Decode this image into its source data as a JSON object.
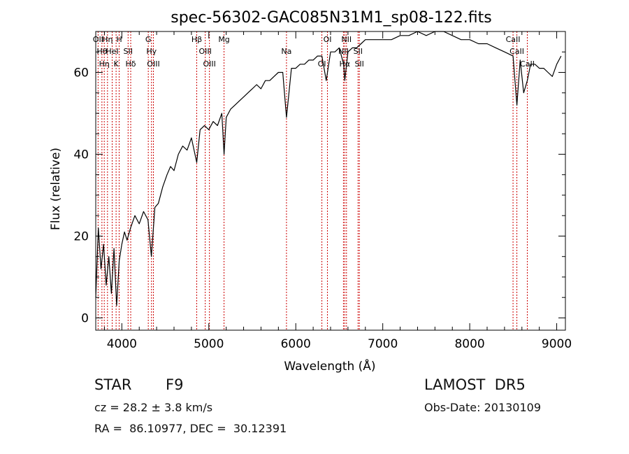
{
  "chart_data": {
    "type": "line",
    "title": "spec-56302-GAC085N31M1_sp08-122.fits",
    "xlabel": "Wavelength (Å)",
    "ylabel": "Flux (relative)",
    "xlim": [
      3700,
      9100
    ],
    "ylim": [
      -3,
      70
    ],
    "x_ticks": [
      4000,
      5000,
      6000,
      7000,
      8000,
      9000
    ],
    "y_ticks": [
      0,
      20,
      40,
      60
    ],
    "grid": false,
    "series": [
      {
        "line_color": "#000000",
        "x": [
          3700,
          3730,
          3760,
          3790,
          3820,
          3850,
          3880,
          3910,
          3940,
          3970,
          4000,
          4030,
          4060,
          4100,
          4150,
          4200,
          4250,
          4300,
          4340,
          4380,
          4420,
          4470,
          4520,
          4560,
          4600,
          4650,
          4700,
          4750,
          4800,
          4861,
          4900,
          4950,
          5000,
          5050,
          5100,
          5150,
          5175,
          5200,
          5250,
          5300,
          5350,
          5400,
          5450,
          5500,
          5550,
          5600,
          5650,
          5700,
          5750,
          5800,
          5850,
          5893,
          5950,
          6000,
          6050,
          6100,
          6150,
          6200,
          6250,
          6300,
          6350,
          6400,
          6450,
          6500,
          6550,
          6563,
          6600,
          6650,
          6700,
          6750,
          6800,
          6900,
          7000,
          7100,
          7200,
          7300,
          7400,
          7500,
          7600,
          7700,
          7800,
          7900,
          8000,
          8100,
          8200,
          8300,
          8400,
          8498,
          8542,
          8580,
          8620,
          8662,
          8700,
          8750,
          8800,
          8850,
          8900,
          8950,
          9000,
          9050
        ],
        "y": [
          5,
          22,
          12,
          18,
          8,
          15,
          6,
          17,
          3,
          14,
          18,
          21,
          19,
          22,
          25,
          23,
          26,
          24,
          15,
          27,
          28,
          32,
          35,
          37,
          36,
          40,
          42,
          41,
          44,
          38,
          46,
          47,
          46,
          48,
          47,
          50,
          40,
          49,
          51,
          52,
          53,
          54,
          55,
          56,
          57,
          56,
          58,
          58,
          59,
          60,
          60,
          49,
          61,
          61,
          62,
          62,
          63,
          63,
          64,
          64,
          58,
          65,
          65,
          66,
          62,
          58,
          65,
          66,
          66,
          67,
          68,
          68,
          68,
          68,
          69,
          69,
          70,
          69,
          70,
          70,
          69,
          68,
          68,
          67,
          67,
          66,
          65,
          64,
          52,
          63,
          55,
          58,
          62,
          62,
          61,
          61,
          60,
          59,
          62,
          64
        ]
      }
    ],
    "line_annotations": [
      {
        "x": 3727,
        "labels": [
          "OII"
        ]
      },
      {
        "x": 3771,
        "labels": [
          "Hθ"
        ]
      },
      {
        "x": 3798,
        "labels": [
          "Hη"
        ]
      },
      {
        "x": 3835,
        "labels": [
          "Hη"
        ]
      },
      {
        "x": 3889,
        "labels": [
          "HeI"
        ]
      },
      {
        "x": 3934,
        "labels": [
          "K"
        ]
      },
      {
        "x": 3969,
        "labels": [
          "H"
        ]
      },
      {
        "x": 4072,
        "labels": [
          "SII"
        ]
      },
      {
        "x": 4102,
        "labels": [
          "Hδ"
        ]
      },
      {
        "x": 4304,
        "labels": [
          "G"
        ]
      },
      {
        "x": 4341,
        "labels": [
          "Hγ"
        ]
      },
      {
        "x": 4363,
        "labels": [
          "OIII"
        ]
      },
      {
        "x": 4861,
        "labels": [
          "Hβ"
        ]
      },
      {
        "x": 4959,
        "labels": [
          "OIII"
        ]
      },
      {
        "x": 5007,
        "labels": [
          "OIII"
        ]
      },
      {
        "x": 5175,
        "labels": [
          "Mg"
        ]
      },
      {
        "x": 5893,
        "labels": [
          "Na"
        ]
      },
      {
        "x": 6300,
        "labels": [
          "OI"
        ]
      },
      {
        "x": 6364,
        "labels": [
          "OI"
        ]
      },
      {
        "x": 6548,
        "labels": [
          "NII"
        ]
      },
      {
        "x": 6563,
        "labels": [
          "Hα"
        ]
      },
      {
        "x": 6583,
        "labels": [
          "NII"
        ]
      },
      {
        "x": 6716,
        "labels": [
          "SII"
        ]
      },
      {
        "x": 6731,
        "labels": [
          "SII"
        ]
      },
      {
        "x": 8498,
        "labels": [
          "CaII"
        ]
      },
      {
        "x": 8542,
        "labels": [
          "CaII"
        ]
      },
      {
        "x": 8662,
        "labels": [
          "CaII"
        ]
      }
    ],
    "annotation_color": "#cc0000"
  },
  "footer": {
    "object_type": "STAR",
    "subclass": "F9",
    "survey": "LAMOST  DR5",
    "cz": "cz = 28.2 ± 3.8 km/s",
    "obs_date": "Obs-Date: 20130109",
    "radec": "RA =  86.10977, DEC =  30.12391"
  }
}
